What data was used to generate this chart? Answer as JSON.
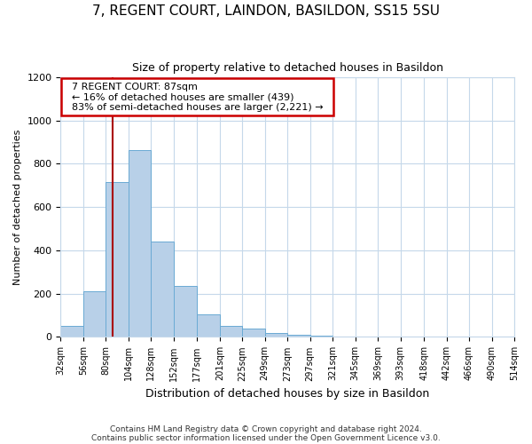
{
  "title": "7, REGENT COURT, LAINDON, BASILDON, SS15 5SU",
  "subtitle": "Size of property relative to detached houses in Basildon",
  "xlabel": "Distribution of detached houses by size in Basildon",
  "ylabel": "Number of detached properties",
  "footnote1": "Contains HM Land Registry data © Crown copyright and database right 2024.",
  "footnote2": "Contains public sector information licensed under the Open Government Licence v3.0.",
  "annotation_line1": "7 REGENT COURT: 87sqm",
  "annotation_line2": "← 16% of detached houses are smaller (439)",
  "annotation_line3": "83% of semi-detached houses are larger (2,221) →",
  "bin_edges": [
    32,
    56,
    80,
    104,
    128,
    152,
    177,
    201,
    225,
    249,
    273,
    297,
    321,
    345,
    369,
    393,
    418,
    442,
    466,
    490,
    514
  ],
  "bar_heights": [
    50,
    210,
    715,
    865,
    440,
    235,
    105,
    50,
    40,
    20,
    10,
    5,
    2,
    0,
    0,
    0,
    0,
    0,
    0,
    0
  ],
  "bar_color": "#b8d0e8",
  "bar_edge_color": "#6aaad4",
  "property_value": 87,
  "vline_color": "#aa0000",
  "ylim": [
    0,
    1200
  ],
  "yticks": [
    0,
    200,
    400,
    600,
    800,
    1000,
    1200
  ],
  "background_color": "#ffffff",
  "grid_color": "#c5d8ea",
  "annotation_box_color": "#ffffff",
  "annotation_box_edge": "#cc0000",
  "title_fontsize": 11,
  "subtitle_fontsize": 9,
  "ylabel_fontsize": 8,
  "xlabel_fontsize": 9
}
